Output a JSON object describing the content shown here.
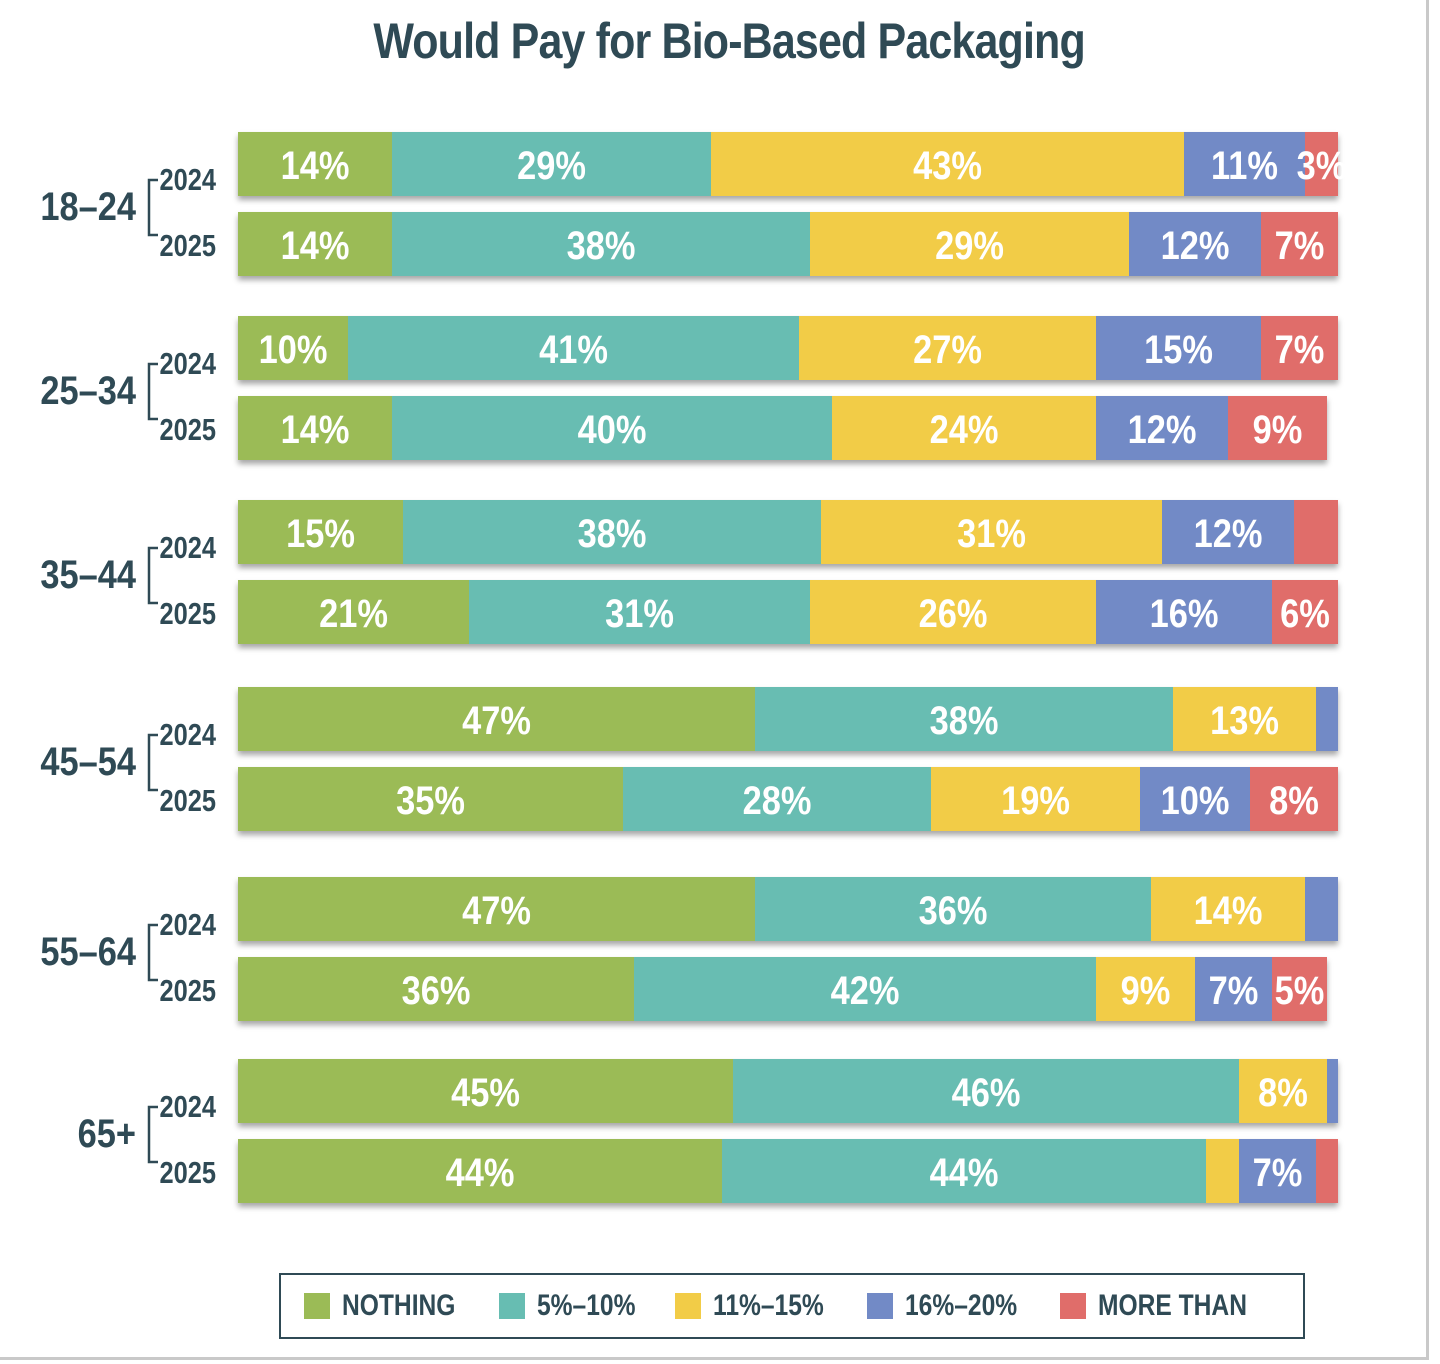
{
  "chart_data": {
    "type": "bar",
    "orientation": "horizontal-stacked",
    "title": "Would Pay for Bio-Based Packaging",
    "xlabel": "",
    "ylabel": "",
    "xlim": [
      0,
      100
    ],
    "grid": false,
    "legend_position": "bottom",
    "series": [
      {
        "name": "NOTHING",
        "color": "#9bbb56"
      },
      {
        "name": "5%–10%",
        "color": "#67bdb2"
      },
      {
        "name": "11%–15%",
        "color": "#f2cc47"
      },
      {
        "name": "16%–20%",
        "color": "#728ac6"
      },
      {
        "name": "MORE THAN",
        "color": "#e06d6a"
      }
    ],
    "groups": [
      {
        "name": "18–24",
        "bars": [
          {
            "year": "2024",
            "values": [
              14,
              29,
              43,
              11,
              3
            ],
            "labels": [
              "14%",
              "29%",
              "43%",
              "11%",
              "3%"
            ]
          },
          {
            "year": "2025",
            "values": [
              14,
              38,
              29,
              12,
              7
            ],
            "labels": [
              "14%",
              "38%",
              "29%",
              "12%",
              "7%"
            ]
          }
        ]
      },
      {
        "name": "25–34",
        "bars": [
          {
            "year": "2024",
            "values": [
              10,
              41,
              27,
              15,
              7
            ],
            "labels": [
              "10%",
              "41%",
              "27%",
              "15%",
              "7%"
            ]
          },
          {
            "year": "2025",
            "values": [
              14,
              40,
              24,
              12,
              9
            ],
            "labels": [
              "14%",
              "40%",
              "24%",
              "12%",
              "9%"
            ]
          }
        ]
      },
      {
        "name": "35–44",
        "bars": [
          {
            "year": "2024",
            "values": [
              15,
              38,
              31,
              12,
              4
            ],
            "labels": [
              "15%",
              "38%",
              "31%",
              "12%",
              ""
            ]
          },
          {
            "year": "2025",
            "values": [
              21,
              31,
              26,
              16,
              6
            ],
            "labels": [
              "21%",
              "31%",
              "26%",
              "16%",
              "6%"
            ]
          }
        ]
      },
      {
        "name": "45–54",
        "bars": [
          {
            "year": "2024",
            "values": [
              47,
              38,
              13,
              2,
              0
            ],
            "labels": [
              "47%",
              "38%",
              "13%",
              "",
              ""
            ]
          },
          {
            "year": "2025",
            "values": [
              35,
              28,
              19,
              10,
              8
            ],
            "labels": [
              "35%",
              "28%",
              "19%",
              "10%",
              "8%"
            ]
          }
        ]
      },
      {
        "name": "55–64",
        "bars": [
          {
            "year": "2024",
            "values": [
              47,
              36,
              14,
              3,
              0
            ],
            "labels": [
              "47%",
              "36%",
              "14%",
              "",
              ""
            ]
          },
          {
            "year": "2025",
            "values": [
              36,
              42,
              9,
              7,
              5
            ],
            "labels": [
              "36%",
              "42%",
              "9%",
              "7%",
              "5%"
            ]
          }
        ]
      },
      {
        "name": "65+",
        "bars": [
          {
            "year": "2024",
            "values": [
              45,
              46,
              8,
              1,
              0
            ],
            "labels": [
              "45%",
              "46%",
              "8%",
              "",
              ""
            ]
          },
          {
            "year": "2025",
            "values": [
              44,
              44,
              3,
              7,
              2
            ],
            "labels": [
              "44%",
              "44%",
              "",
              "7%",
              ""
            ]
          }
        ]
      }
    ]
  }
}
